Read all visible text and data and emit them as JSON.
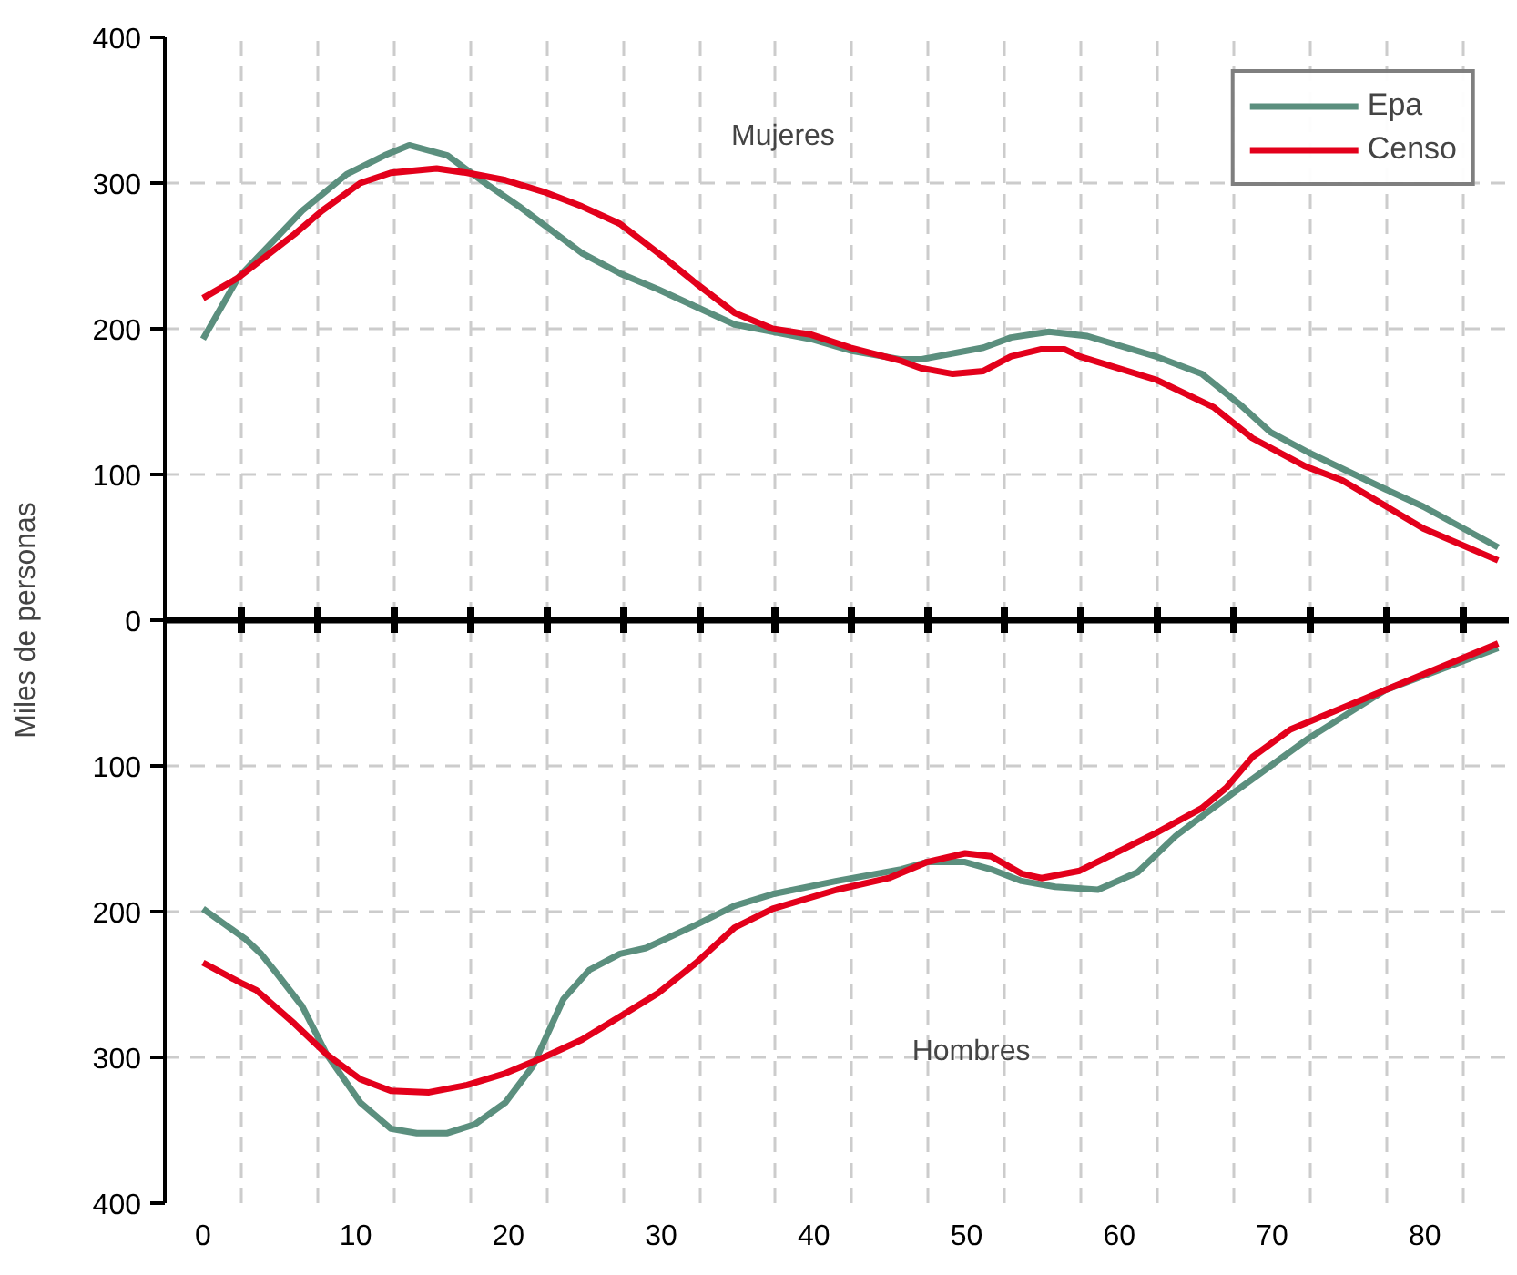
{
  "chart_data": {
    "type": "line",
    "ylabel": "Miles de personas",
    "annotations": [
      "Mujeres",
      "Hombres"
    ],
    "xlim": [
      -2.5,
      85.5
    ],
    "xticks": [
      0,
      10,
      20,
      30,
      40,
      50,
      60,
      70,
      80,
      {
        "value": 2.5,
        "label": null
      },
      {
        "value": 7.5,
        "label": null
      },
      {
        "value": 12.5,
        "label": null
      },
      {
        "value": 17.5,
        "label": null
      },
      {
        "value": 22.5,
        "label": null
      },
      {
        "value": 27.5,
        "label": null
      },
      {
        "value": 32.5,
        "label": null
      },
      {
        "value": 37.5,
        "label": null
      },
      {
        "value": 42.5,
        "label": null
      },
      {
        "value": 47.5,
        "label": null
      },
      {
        "value": 52.5,
        "label": null
      },
      {
        "value": 57.5,
        "label": null
      },
      {
        "value": 62.5,
        "label": null
      },
      {
        "value": 67.5,
        "label": null
      },
      {
        "value": 72.5,
        "label": null
      },
      {
        "value": 77.5,
        "label": null
      },
      {
        "value": 82.5,
        "label": null
      }
    ],
    "ylim": [
      -400,
      400
    ],
    "yticks": [
      {
        "value": -400,
        "label": "400"
      },
      {
        "value": -300,
        "label": "300"
      },
      {
        "value": -200,
        "label": "200"
      },
      {
        "value": -100,
        "label": "100"
      },
      0,
      100,
      200,
      300,
      400
    ],
    "ref_lines": [
      {
        "axis": "y",
        "value": 0,
        "color": "#000000"
      }
    ],
    "grid": true,
    "legend": "top right",
    "line_style": "solid",
    "series": [
      {
        "name": "Epa",
        "color": "#5b8f7e",
        "x": [
          0,
          2.3,
          6.5,
          9.4,
          11.9,
          13.5,
          16,
          18.2,
          20.7,
          24.8,
          27.3,
          29.8,
          32.3,
          34.8,
          37.3,
          39.8,
          42.4,
          45.7,
          47,
          51.1,
          52.9,
          55.4,
          57.9,
          62.4,
          65.4,
          67.9,
          69.9,
          72.4,
          77.4,
          79.9,
          84.8
        ],
        "values": [
          193,
          235,
          281,
          306,
          319,
          326,
          319,
          302,
          284,
          252,
          238,
          227,
          215,
          203,
          198,
          193,
          185,
          179,
          179,
          187,
          194,
          198,
          195,
          181,
          169,
          148,
          129,
          115,
          90,
          78,
          50
        ]
      },
      {
        "name": "Censo",
        "color": "#e3001b",
        "x": [
          0,
          2.3,
          6,
          7.8,
          10.3,
          12.3,
          15.3,
          17.3,
          19.8,
          22.3,
          24.8,
          27.3,
          30.3,
          32.3,
          34.8,
          37.3,
          39.8,
          42.4,
          45.7,
          47,
          49.1,
          51.1,
          52.9,
          54.9,
          56.4,
          57.4,
          62.4,
          66.2,
          68.7,
          72.1,
          74.6,
          79.9,
          84.8
        ],
        "values": [
          221,
          235,
          265,
          281,
          300,
          307,
          310,
          307,
          302,
          294,
          284,
          272,
          248,
          231,
          211,
          200,
          196,
          187,
          178,
          173,
          169,
          171,
          181,
          186,
          186,
          181,
          165,
          146,
          125,
          106,
          96,
          63,
          41
        ]
      },
      {
        "color": "#5b8f7e",
        "x": [
          0,
          2.8,
          3.8,
          4.8,
          6.5,
          8.1,
          10.3,
          12.3,
          14,
          16,
          17.8,
          19.8,
          21.6,
          23.6,
          25.3,
          27.3,
          29,
          32.3,
          34.8,
          37.3,
          41.5,
          45.7,
          47.4,
          49.9,
          51.6,
          53.6,
          55.8,
          58.6,
          61.2,
          63.7,
          67.4,
          72.4,
          77.4,
          84.8
        ],
        "values": [
          -198,
          -219,
          -229,
          -242,
          -265,
          -298,
          -331,
          -349,
          -352,
          -352,
          -346,
          -331,
          -306,
          -260,
          -240,
          -229,
          -225,
          -209,
          -196,
          -188,
          -179,
          -171,
          -166,
          -166,
          -171,
          -179,
          -183,
          -185,
          -173,
          -148,
          -119,
          -81,
          -48,
          -19
        ]
      },
      {
        "color": "#e3001b",
        "x": [
          0,
          2.5,
          3.5,
          6,
          8.1,
          10.3,
          12.3,
          14.8,
          17.3,
          19.8,
          22.3,
          24.8,
          27.3,
          29.8,
          32.3,
          34.8,
          37.3,
          41.5,
          44.9,
          47.4,
          49.9,
          51.6,
          53.6,
          54.9,
          57.4,
          62.4,
          65.4,
          67,
          68.7,
          71.2,
          77.4,
          84.8
        ],
        "values": [
          -235,
          -249,
          -254,
          -277,
          -298,
          -315,
          -323,
          -324,
          -319,
          -311,
          -300,
          -288,
          -272,
          -256,
          -235,
          -211,
          -198,
          -185,
          -177,
          -166,
          -160,
          -162,
          -174,
          -177,
          -172,
          -146,
          -129,
          -115,
          -94,
          -75,
          -48,
          -16
        ]
      }
    ]
  }
}
